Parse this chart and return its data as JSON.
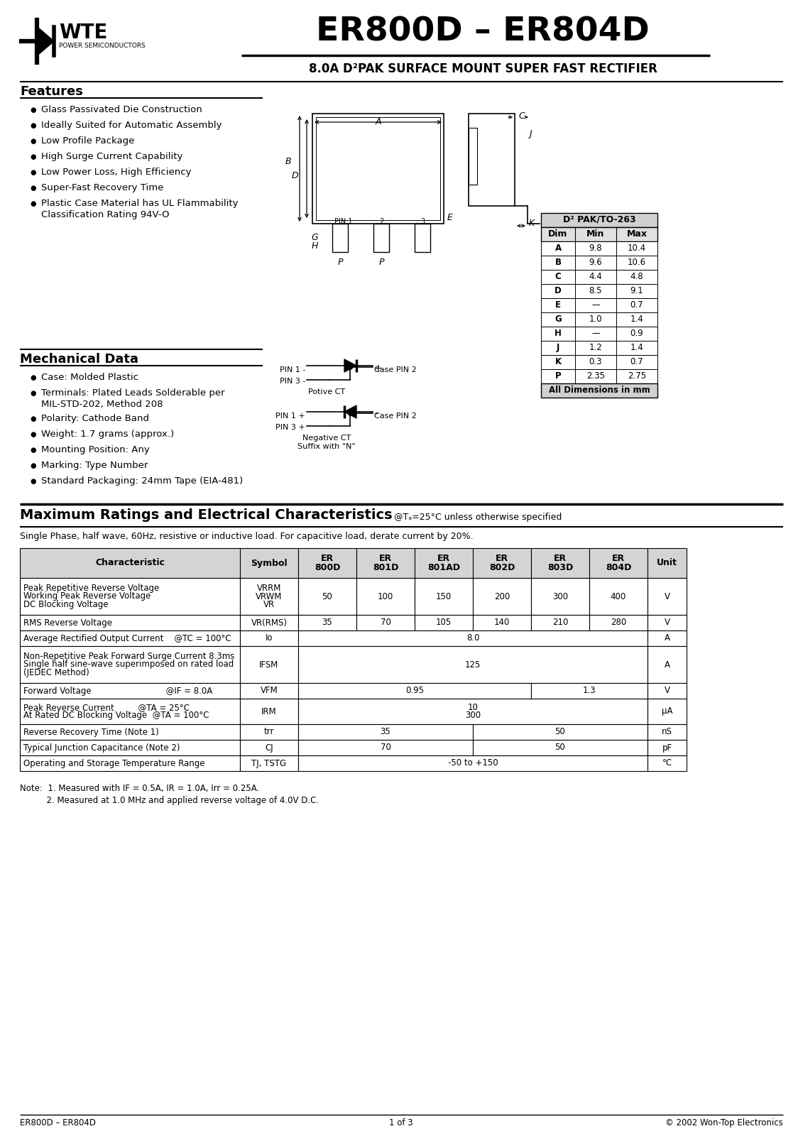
{
  "title": "ER800D – ER804D",
  "subtitle": "8.0A D²PAK SURFACE MOUNT SUPER FAST RECTIFIER",
  "company": "WTE",
  "company_sub": "POWER SEMICONDUCTORS",
  "features_title": "Features",
  "features": [
    "Glass Passivated Die Construction",
    "Ideally Suited for Automatic Assembly",
    "Low Profile Package",
    "High Surge Current Capability",
    "Low Power Loss, High Efficiency",
    "Super-Fast Recovery Time",
    "Plastic Case Material has UL Flammability\nClassification Rating 94V-O"
  ],
  "mech_title": "Mechanical Data",
  "mech_items": [
    "Case: Molded Plastic",
    "Terminals: Plated Leads Solderable per\nMIL-STD-202, Method 208",
    "Polarity: Cathode Band",
    "Weight: 1.7 grams (approx.)",
    "Mounting Position: Any",
    "Marking: Type Number",
    "Standard Packaging: 24mm Tape (EIA-481)"
  ],
  "dim_table_title": "D² PAK/TO-263",
  "dim_headers": [
    "Dim",
    "Min",
    "Max"
  ],
  "dim_rows": [
    [
      "A",
      "9.8",
      "10.4"
    ],
    [
      "B",
      "9.6",
      "10.6"
    ],
    [
      "C",
      "4.4",
      "4.8"
    ],
    [
      "D",
      "8.5",
      "9.1"
    ],
    [
      "E",
      "—",
      "0.7"
    ],
    [
      "G",
      "1.0",
      "1.4"
    ],
    [
      "H",
      "—",
      "0.9"
    ],
    [
      "J",
      "1.2",
      "1.4"
    ],
    [
      "K",
      "0.3",
      "0.7"
    ],
    [
      "P",
      "2.35",
      "2.75"
    ]
  ],
  "dim_footer": "All Dimensions in mm",
  "max_ratings_title": "Maximum Ratings and Electrical Characteristics",
  "max_ratings_sub": "@Tₐ=25°C unless otherwise specified",
  "max_ratings_note": "Single Phase, half wave, 60Hz, resistive or inductive load. For capacitive load, derate current by 20%.",
  "footer_left": "ER800D – ER804D",
  "footer_mid": "1 of 3",
  "footer_right": "© 2002 Won-Top Electronics",
  "bg_color": "#ffffff"
}
